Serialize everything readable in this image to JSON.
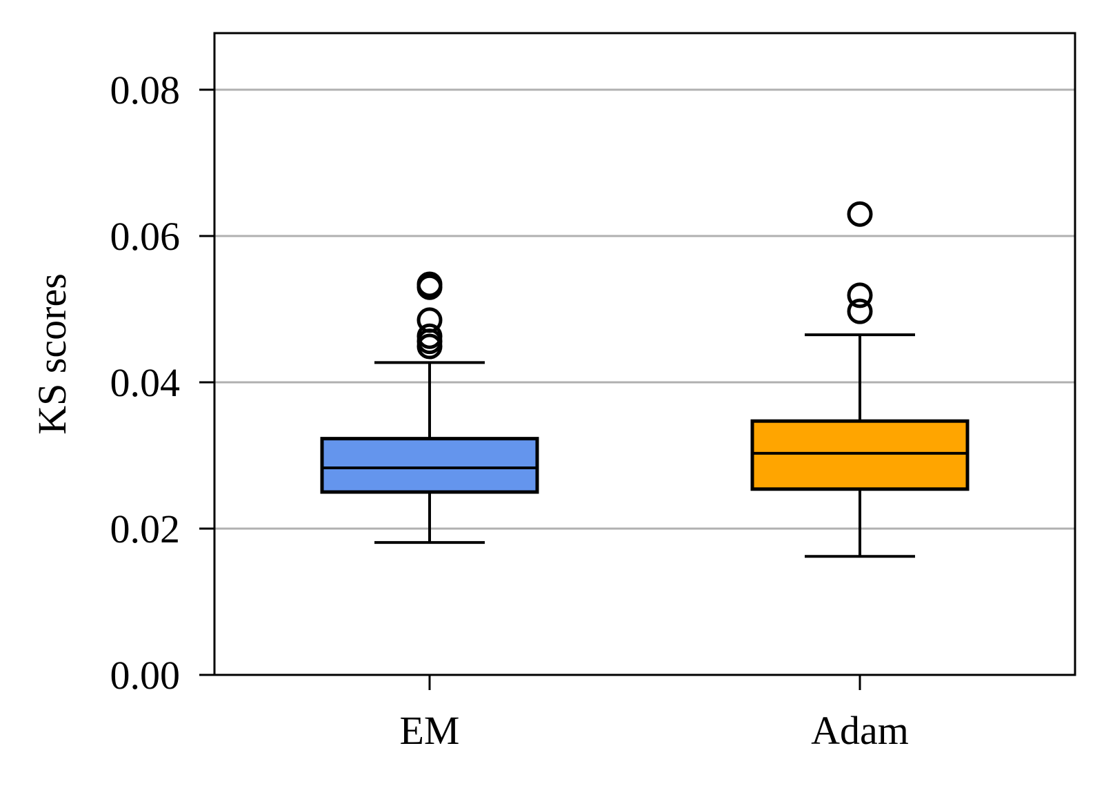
{
  "chart_data": {
    "type": "box",
    "title": "",
    "xlabel": "",
    "ylabel": "KS scores",
    "categories": [
      "EM",
      "Adam"
    ],
    "ylim": [
      0,
      0.088
    ],
    "yticks": [
      0.0,
      0.02,
      0.04,
      0.06,
      0.08
    ],
    "ytick_labels": [
      "0.00",
      "0.02",
      "0.04",
      "0.06",
      "0.08"
    ],
    "grid": "horizontal",
    "boxes": [
      {
        "category": "EM",
        "color": "#6495ED",
        "whisker_low": 0.0181,
        "q1": 0.025,
        "median": 0.0283,
        "q3": 0.0323,
        "whisker_high": 0.0427,
        "outliers": [
          0.0449,
          0.0456,
          0.0463,
          0.0485,
          0.053,
          0.0534
        ]
      },
      {
        "category": "Adam",
        "color": "#FFA500",
        "whisker_low": 0.0162,
        "q1": 0.0254,
        "median": 0.0303,
        "q3": 0.0347,
        "whisker_high": 0.0465,
        "outliers": [
          0.0497,
          0.0519,
          0.063
        ]
      }
    ]
  }
}
